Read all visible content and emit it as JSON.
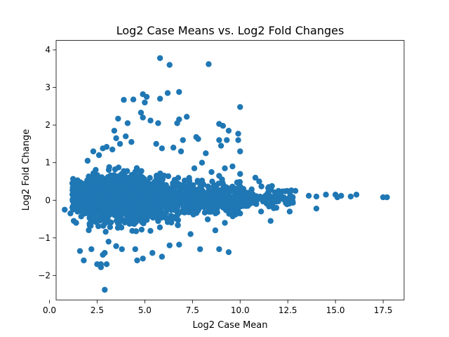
{
  "chart_data": {
    "type": "scatter",
    "title": "Log2 Case Means vs. Log2 Fold Changes",
    "xlabel": "Log2 Case Mean",
    "ylabel": "Log2 Fold Change",
    "xlim": [
      0.35,
      18.6
    ],
    "ylim": [
      -2.65,
      4.25
    ],
    "xticks": [
      0.0,
      2.5,
      5.0,
      7.5,
      10.0,
      12.5,
      15.0,
      17.5
    ],
    "xtick_labels": [
      "0.0",
      "2.5",
      "5.0",
      "7.5",
      "10.0",
      "12.5",
      "15.0",
      "17.5"
    ],
    "yticks": [
      -2,
      -1,
      0,
      1,
      2,
      3,
      4
    ],
    "ytick_labels": [
      "−2",
      "−1",
      "0",
      "1",
      "2",
      "3",
      "4"
    ],
    "grid": false,
    "legend": "none",
    "color": "#1f77b4",
    "dense_cloud": {
      "x_range": [
        1.0,
        13.0
      ],
      "y_center": 0.05,
      "note_points_generated": 1800
    },
    "points": [
      [
        5.8,
        3.78
      ],
      [
        6.3,
        3.6
      ],
      [
        8.35,
        3.62
      ],
      [
        6.2,
        2.85
      ],
      [
        6.8,
        2.88
      ],
      [
        3.9,
        2.67
      ],
      [
        4.4,
        2.68
      ],
      [
        4.9,
        2.82
      ],
      [
        5.1,
        2.75
      ],
      [
        5.0,
        2.6
      ],
      [
        5.8,
        2.7
      ],
      [
        10.0,
        2.48
      ],
      [
        3.6,
        2.17
      ],
      [
        4.8,
        2.33
      ],
      [
        4.9,
        2.2
      ],
      [
        5.3,
        2.12
      ],
      [
        5.7,
        2.05
      ],
      [
        6.8,
        2.15
      ],
      [
        6.7,
        2.05
      ],
      [
        7.2,
        2.22
      ],
      [
        4.1,
        2.05
      ],
      [
        8.9,
        2.03
      ],
      [
        9.1,
        1.98
      ],
      [
        9.4,
        1.85
      ],
      [
        9.9,
        1.77
      ],
      [
        9.9,
        1.6
      ],
      [
        9.3,
        1.6
      ],
      [
        8.9,
        1.6
      ],
      [
        9.0,
        1.45
      ],
      [
        7.7,
        1.68
      ],
      [
        7.8,
        1.63
      ],
      [
        7.0,
        1.6
      ],
      [
        10.0,
        1.3
      ],
      [
        9.6,
        0.9
      ],
      [
        9.2,
        0.85
      ],
      [
        10.0,
        0.7
      ],
      [
        10.8,
        0.6
      ],
      [
        11.0,
        0.5
      ],
      [
        11.5,
        0.35
      ],
      [
        12.1,
        0.15
      ],
      [
        12.9,
        0.25
      ],
      [
        13.6,
        0.12
      ],
      [
        14.0,
        0.1
      ],
      [
        14.5,
        0.15
      ],
      [
        15.0,
        0.15
      ],
      [
        15.1,
        0.08
      ],
      [
        15.3,
        0.12
      ],
      [
        15.8,
        0.1
      ],
      [
        16.1,
        0.15
      ],
      [
        17.5,
        0.08
      ],
      [
        17.7,
        0.08
      ],
      [
        14.0,
        -0.22
      ],
      [
        12.6,
        -0.3
      ],
      [
        11.9,
        -0.2
      ],
      [
        11.6,
        -0.55
      ],
      [
        11.1,
        -0.3
      ],
      [
        10.4,
        -0.15
      ],
      [
        10.0,
        -0.35
      ],
      [
        9.5,
        -0.3
      ],
      [
        9.2,
        -0.6
      ],
      [
        8.7,
        -0.8
      ],
      [
        9.4,
        -1.38
      ],
      [
        8.9,
        -1.3
      ],
      [
        7.9,
        -1.3
      ],
      [
        7.4,
        -0.9
      ],
      [
        6.8,
        -1.18
      ],
      [
        6.3,
        -1.2
      ],
      [
        5.9,
        -1.5
      ],
      [
        5.4,
        -1.4
      ],
      [
        4.9,
        -1.55
      ],
      [
        4.6,
        -1.6
      ],
      [
        4.5,
        -1.3
      ],
      [
        3.8,
        -1.3
      ],
      [
        3.5,
        -1.22
      ],
      [
        3.1,
        -1.1
      ],
      [
        2.9,
        -1.4
      ],
      [
        2.7,
        -1.7
      ],
      [
        2.5,
        -1.7
      ],
      [
        2.7,
        -1.78
      ],
      [
        3.0,
        -1.7
      ],
      [
        2.8,
        -1.45
      ],
      [
        2.2,
        -1.3
      ],
      [
        1.8,
        -1.6
      ],
      [
        1.6,
        -1.35
      ],
      [
        2.9,
        -2.38
      ],
      [
        1.4,
        -0.6
      ],
      [
        1.1,
        -0.35
      ],
      [
        0.8,
        -0.25
      ],
      [
        1.2,
        0.45
      ],
      [
        1.5,
        0.4
      ],
      [
        2.0,
        1.05
      ],
      [
        2.3,
        1.3
      ],
      [
        2.6,
        1.2
      ],
      [
        2.8,
        1.38
      ],
      [
        3.0,
        1.42
      ],
      [
        3.4,
        1.85
      ],
      [
        3.5,
        1.65
      ],
      [
        3.7,
        1.5
      ],
      [
        3.3,
        1.35
      ],
      [
        4.0,
        1.7
      ],
      [
        4.3,
        1.55
      ],
      [
        5.6,
        1.5
      ],
      [
        5.9,
        1.38
      ],
      [
        6.5,
        1.4
      ],
      [
        6.9,
        1.3
      ],
      [
        8.0,
        1.0
      ],
      [
        8.2,
        1.25
      ],
      [
        8.5,
        0.75
      ],
      [
        8.9,
        0.65
      ],
      [
        7.6,
        0.85
      ]
    ]
  }
}
